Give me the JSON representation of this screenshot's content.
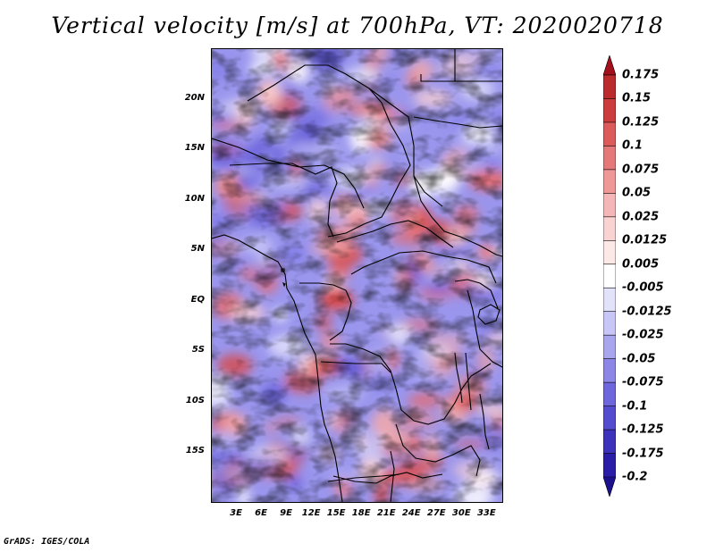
{
  "title": "Vertical velocity [m/s] at 700hPa, VT: 2020020718",
  "credit": "GrADS: IGES/COLA",
  "map": {
    "lat_labels": [
      "20N",
      "15N",
      "10N",
      "5N",
      "EQ",
      "5S",
      "10S",
      "15S"
    ],
    "lon_labels": [
      "3E",
      "6E",
      "9E",
      "12E",
      "15E",
      "18E",
      "21E",
      "24E",
      "27E",
      "30E",
      "33E"
    ],
    "extent": {
      "lon": [
        0,
        35
      ],
      "lat": [
        -20,
        25
      ]
    }
  },
  "colorbar": {
    "levels": [
      "0.175",
      "0.15",
      "0.125",
      "0.1",
      "0.075",
      "0.05",
      "0.025",
      "0.0125",
      "0.005",
      "-0.005",
      "-0.0125",
      "-0.025",
      "-0.05",
      "-0.075",
      "-0.1",
      "-0.125",
      "-0.175",
      "-0.2"
    ],
    "colors": [
      "#a3101c",
      "#bb2a2c",
      "#cd3c3c",
      "#dc5a5a",
      "#e57878",
      "#ee9898",
      "#f4b6b6",
      "#f9d2d2",
      "#fde8e8",
      "#ffffff",
      "#e2e2fb",
      "#c8c6f6",
      "#aaa6ee",
      "#8c86e6",
      "#6e66dc",
      "#544cce",
      "#3c32bc",
      "#2a1ea8",
      "#1c108f"
    ],
    "warm_color": "#e84848",
    "cool_color": "#4848d8"
  }
}
